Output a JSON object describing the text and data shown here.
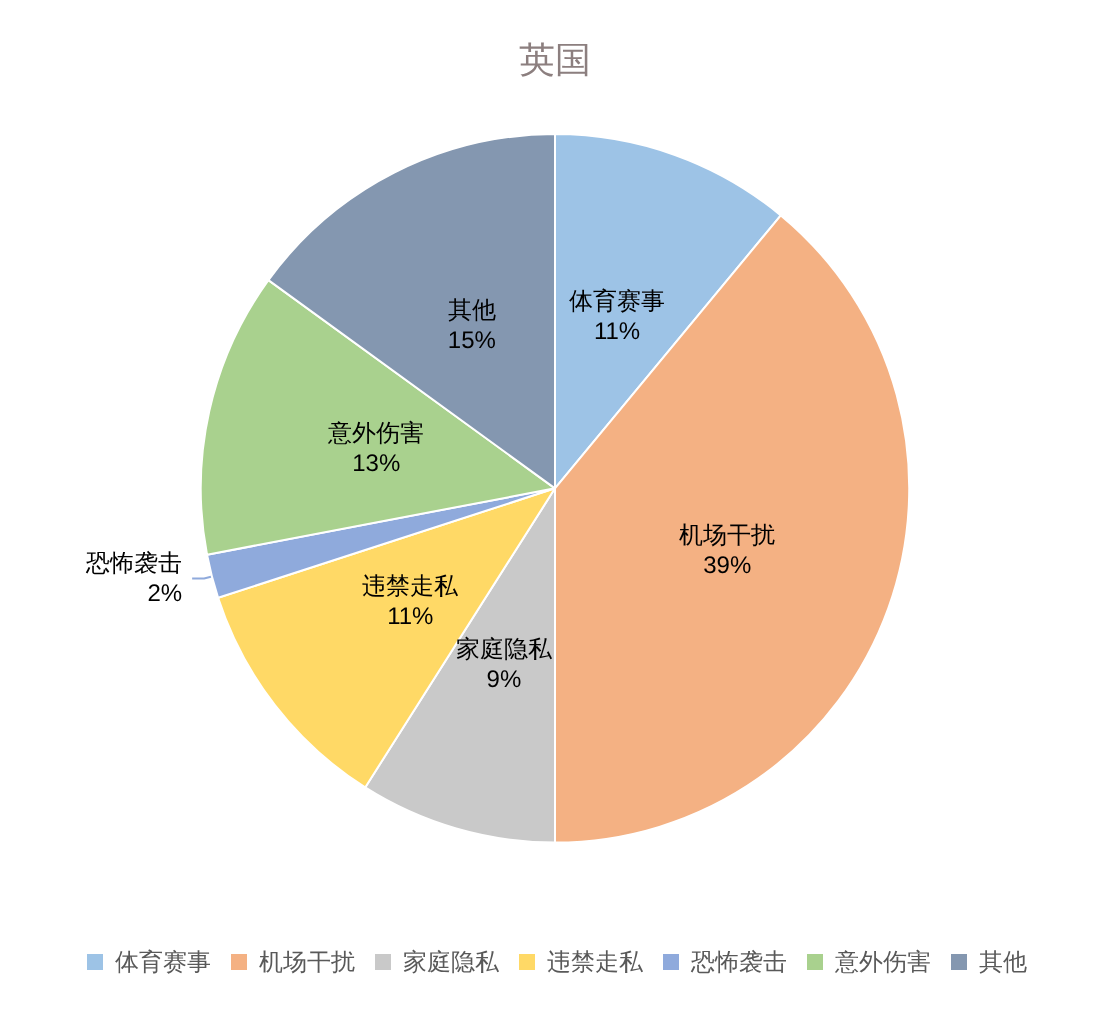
{
  "chart_data": {
    "type": "pie",
    "title": "英国",
    "categories": [
      "体育赛事",
      "机场干扰",
      "家庭隐私",
      "违禁走私",
      "恐怖袭击",
      "意外伤害",
      "其他"
    ],
    "values": [
      11,
      39,
      9,
      11,
      2,
      13,
      15
    ],
    "value_labels": [
      "11%",
      "39%",
      "9%",
      "11%",
      "2%",
      "13%",
      "15%"
    ],
    "colors": [
      "#9dc3e6",
      "#f4b183",
      "#c9c9c9",
      "#ffd966",
      "#8faadc",
      "#a9d18e",
      "#8497b0"
    ],
    "legend": "bottom"
  }
}
